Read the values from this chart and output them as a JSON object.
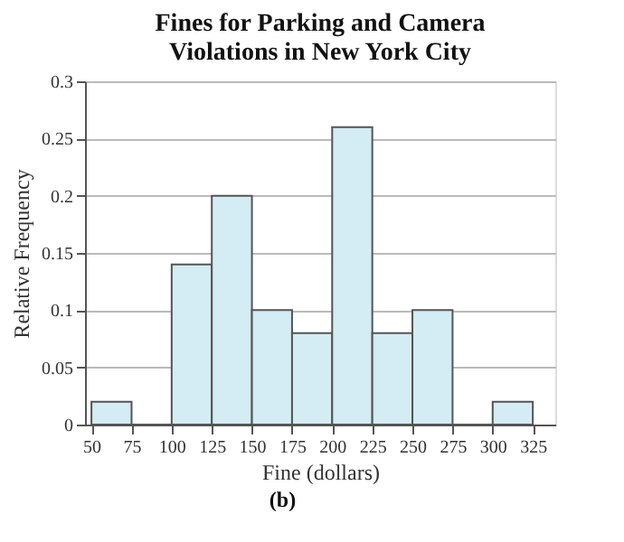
{
  "chart_data": {
    "type": "histogram",
    "title": "Fines for Parking and Camera Violations in New York City",
    "xlabel": "Fine (dollars)",
    "ylabel": "Relative Frequency",
    "bins": [
      50,
      75,
      100,
      125,
      150,
      175,
      200,
      225,
      250,
      275,
      300,
      325
    ],
    "values": [
      0.02,
      0,
      0.14,
      0.2,
      0.1,
      0.08,
      0.26,
      0.08,
      0.1,
      0,
      0.02
    ],
    "color": "#d4ecf3",
    "xlim": [
      46,
      339
    ],
    "xticks": [
      50,
      75,
      100,
      125,
      150,
      175,
      200,
      225,
      250,
      275,
      300,
      325
    ],
    "ylim": [
      0,
      0.3
    ],
    "yticks": [
      0,
      0.05,
      0.1,
      0.15,
      0.2,
      0.25,
      0.3
    ],
    "grid": "y",
    "annotations": [
      "(b)"
    ]
  }
}
